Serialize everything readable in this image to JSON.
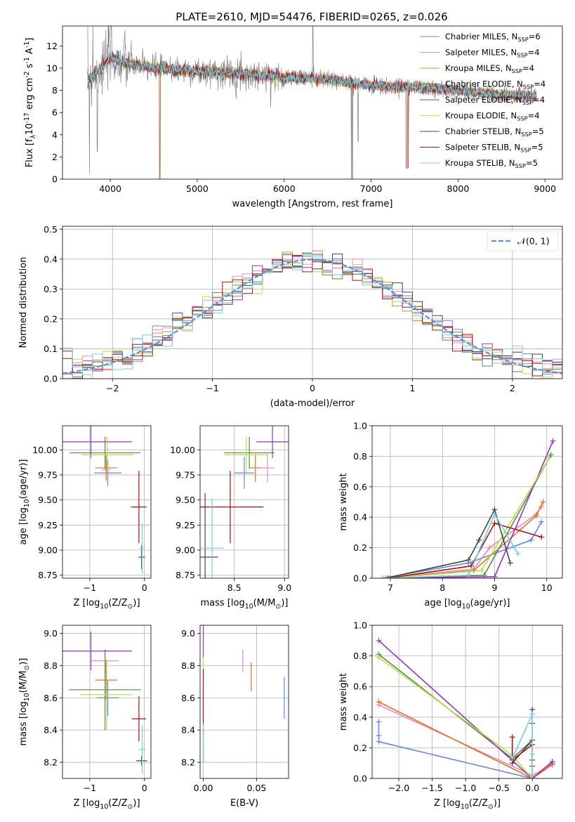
{
  "title": "PLATE=2610, MJD=54476, FIBERID=0265, z=0.026",
  "colors": [
    "#6688dd",
    "#ee88bb",
    "#dd8833",
    "#558855",
    "#9933bb",
    "#dddd44",
    "#444444",
    "#aa1111",
    "#77ccdd"
  ],
  "extra_colors": {
    "gray_data": "#808080",
    "orange": "#e07020",
    "lime": "#bbdd44",
    "normal": "#5b8fd6"
  },
  "chart_data": [
    {
      "id": "spectrum",
      "type": "line",
      "xlabel": "wavelength [Angstrom, rest frame]",
      "ylabel": "Flux [f$_\\lambda$10$^{-17}$ erg cm$^{-2}$ s$^{-1}$ A$^{-1}$]",
      "xlim": [
        3450,
        9200
      ],
      "ylim": [
        0,
        13.8
      ],
      "xticks": [
        4000,
        5000,
        6000,
        7000,
        8000,
        9000
      ],
      "yticks": [
        0,
        2,
        4,
        6,
        8,
        10,
        12
      ],
      "grid": false,
      "legend_position": "top-right",
      "legend": [
        {
          "label": "Chabrier MILES, N",
          "sub": "SSP",
          "tail": "=6"
        },
        {
          "label": "Salpeter MILES, N",
          "sub": "SSP",
          "tail": "=4"
        },
        {
          "label": "Kroupa MILES, N",
          "sub": "SSP",
          "tail": "=4"
        },
        {
          "label": "Chabrier ELODIE, N",
          "sub": "SSP",
          "tail": "=4"
        },
        {
          "label": "Salpeter ELODIE, N",
          "sub": "SSP",
          "tail": "=4"
        },
        {
          "label": "Kroupa ELODIE, N",
          "sub": "SSP",
          "tail": "=4"
        },
        {
          "label": "Chabrier STELIB, N",
          "sub": "SSP",
          "tail": "=5"
        },
        {
          "label": "Salpeter STELIB, N",
          "sub": "SSP",
          "tail": "=5"
        },
        {
          "label": "Kroupa STELIB, N",
          "sub": "SSP",
          "tail": "=5"
        }
      ],
      "continuum": [
        [
          3740,
          9.0
        ],
        [
          3900,
          10.0
        ],
        [
          4000,
          11.0
        ],
        [
          4200,
          10.4
        ],
        [
          4500,
          10.0
        ],
        [
          5000,
          9.7
        ],
        [
          5500,
          9.5
        ],
        [
          6000,
          9.2
        ],
        [
          6500,
          9.0
        ],
        [
          7000,
          8.4
        ],
        [
          7500,
          8.3
        ],
        [
          8000,
          8.0
        ],
        [
          8500,
          7.6
        ],
        [
          8900,
          7.5
        ]
      ],
      "spikes": [
        [
          3760,
          0.5
        ],
        [
          3800,
          13.8
        ],
        [
          3850,
          2.5
        ],
        [
          4010,
          13.8
        ],
        [
          4570,
          0.0
        ],
        [
          6780,
          0.0
        ],
        [
          6850,
          3.4
        ],
        [
          7420,
          1.0
        ],
        [
          6330,
          13.8
        ]
      ]
    },
    {
      "id": "residuals",
      "type": "line",
      "xlabel": "(data-model)/error",
      "ylabel": "Normed distribution",
      "xlim": [
        -2.5,
        2.5
      ],
      "ylim": [
        0,
        0.51
      ],
      "xticks": [
        -2,
        -1,
        0,
        1,
        2
      ],
      "yticks": [
        0.0,
        0.1,
        0.2,
        0.3,
        0.4,
        0.5
      ],
      "grid": true,
      "legend": [
        "$\\mathcal{N}(0,1)$"
      ],
      "legend_position": "top-right",
      "bin_width": 0.1
    },
    {
      "id": "age_vs_Z",
      "type": "scatter",
      "xlabel": "Z [log$_{10}$(Z/Z$_\\odot$)]",
      "ylabel": "age  [log$_{10}$(age/yr)]",
      "xlim": [
        -1.5,
        0.12
      ],
      "ylim": [
        8.72,
        10.24
      ],
      "xticks": [
        -1,
        0
      ],
      "yticks": [
        8.75,
        9.0,
        9.25,
        9.5,
        9.75,
        10.0
      ],
      "grid": true,
      "points": [
        {
          "s": 0,
          "x": -0.67,
          "y": 9.77,
          "xe": 0.25,
          "ye": 0.13
        },
        {
          "s": 1,
          "x": -0.7,
          "y": 9.8,
          "xe": 0.08,
          "ye": 0.1
        },
        {
          "s": 2,
          "x": -0.7,
          "y": 9.82,
          "xe": 0.2,
          "ye": 0.13
        },
        {
          "s": 3,
          "x": -0.72,
          "y": 9.97,
          "xe": 0.65,
          "ye": 0.16
        },
        {
          "s": 4,
          "x": -0.98,
          "y": 10.08,
          "xe": 0.75,
          "ye": 0.16
        },
        {
          "s": 5,
          "x": -0.68,
          "y": 9.95,
          "xe": 0.48,
          "ye": 0.18
        },
        {
          "s": 6,
          "x": -0.05,
          "y": 8.93,
          "xe": 0.06,
          "ye": 0.12
        },
        {
          "s": 7,
          "x": -0.1,
          "y": 9.43,
          "xe": 0.14,
          "ye": 0.36
        },
        {
          "s": 8,
          "x": -0.04,
          "y": 9.02,
          "xe": 0.05,
          "ye": 0.25
        }
      ]
    },
    {
      "id": "age_vs_mass",
      "type": "scatter",
      "xlabel": "mass [log$_{10}$(M/M$_\\odot$)]",
      "ylabel": "",
      "xlim": [
        8.16,
        9.04
      ],
      "ylim": [
        8.72,
        10.24
      ],
      "xticks": [
        8.5,
        9.0
      ],
      "yticks": [
        8.75,
        9.0,
        9.25,
        9.5,
        9.75,
        10.0
      ],
      "grid": true,
      "points": [
        {
          "s": 0,
          "x": 8.6,
          "y": 9.77,
          "xe": 0.1,
          "ye": 0.16
        },
        {
          "s": 1,
          "x": 8.83,
          "y": 9.82,
          "xe": 0.07,
          "ye": 0.14
        },
        {
          "s": 2,
          "x": 8.71,
          "y": 9.82,
          "xe": 0.06,
          "ye": 0.14
        },
        {
          "s": 3,
          "x": 8.65,
          "y": 9.97,
          "xe": 0.25,
          "ye": 0.16
        },
        {
          "s": 4,
          "x": 8.88,
          "y": 10.08,
          "xe": 0.16,
          "ye": 0.16
        },
        {
          "s": 5,
          "x": 8.62,
          "y": 9.95,
          "xe": 0.22,
          "ye": 0.18
        },
        {
          "s": 6,
          "x": 8.21,
          "y": 8.93,
          "xe": 0.13,
          "ye": 0.64
        },
        {
          "s": 7,
          "x": 8.46,
          "y": 9.43,
          "xe": 0.33,
          "ye": 0.36
        },
        {
          "s": 8,
          "x": 8.28,
          "y": 9.02,
          "xe": 0.12,
          "ye": 0.5
        }
      ]
    },
    {
      "id": "weight_vs_age",
      "type": "line",
      "xlabel": "age  [log$_{10}$(age/yr)]",
      "ylabel": "mass weight",
      "xlim": [
        6.65,
        10.3
      ],
      "ylim": [
        0,
        1.0
      ],
      "xticks": [
        7,
        8,
        9,
        10
      ],
      "yticks": [
        0.0,
        0.2,
        0.4,
        0.6,
        0.8,
        1.0
      ],
      "grid": true,
      "series": [
        {
          "s": 0,
          "pts": [
            [
              6.85,
              0.0
            ],
            [
              8.5,
              0.1
            ],
            [
              9.7,
              0.25
            ],
            [
              9.9,
              0.37
            ]
          ]
        },
        {
          "s": 1,
          "pts": [
            [
              6.85,
              0.0
            ],
            [
              8.6,
              0.06
            ],
            [
              8.9,
              0.2
            ],
            [
              9.8,
              0.42
            ],
            [
              9.9,
              0.47
            ]
          ]
        },
        {
          "s": 2,
          "pts": [
            [
              6.9,
              0.0
            ],
            [
              8.6,
              0.05
            ],
            [
              9.8,
              0.41
            ],
            [
              9.93,
              0.5
            ]
          ]
        },
        {
          "s": 3,
          "pts": [
            [
              6.95,
              0.0
            ],
            [
              8.8,
              0.02
            ],
            [
              10.08,
              0.81
            ]
          ]
        },
        {
          "s": 4,
          "pts": [
            [
              7.0,
              0.0
            ],
            [
              9.0,
              0.01
            ],
            [
              10.12,
              0.9
            ]
          ]
        },
        {
          "s": 5,
          "pts": [
            [
              6.9,
              0.0
            ],
            [
              8.75,
              0.05
            ],
            [
              10.05,
              0.79
            ]
          ]
        },
        {
          "s": 6,
          "pts": [
            [
              6.9,
              0.0
            ],
            [
              8.5,
              0.12
            ],
            [
              8.7,
              0.25
            ],
            [
              9.0,
              0.45
            ],
            [
              9.3,
              0.1
            ]
          ]
        },
        {
          "s": 7,
          "pts": [
            [
              6.95,
              0.0
            ],
            [
              8.55,
              0.08
            ],
            [
              9.0,
              0.36
            ],
            [
              9.9,
              0.27
            ]
          ]
        },
        {
          "s": 8,
          "pts": [
            [
              6.9,
              0.0
            ],
            [
              8.5,
              0.02
            ],
            [
              9.0,
              0.42
            ],
            [
              9.45,
              0.16
            ]
          ]
        }
      ]
    },
    {
      "id": "mass_vs_Z",
      "type": "scatter",
      "xlabel": "Z [log$_{10}$(Z/Z$_\\odot$)]",
      "ylabel": "mass [log$_{10}$(M/M$_\\odot$)]",
      "xlim": [
        -1.5,
        0.12
      ],
      "ylim": [
        8.1,
        9.05
      ],
      "xticks": [
        -1,
        0
      ],
      "yticks": [
        8.2,
        8.4,
        8.6,
        8.8,
        9.0
      ],
      "grid": true,
      "points": [
        {
          "s": 0,
          "x": -0.67,
          "y": 8.6,
          "xe": 0.2,
          "ye": 0.11
        },
        {
          "s": 1,
          "x": -0.72,
          "y": 8.83,
          "xe": 0.25,
          "ye": 0.07
        },
        {
          "s": 2,
          "x": -0.7,
          "y": 8.71,
          "xe": 0.2,
          "ye": 0.12
        },
        {
          "s": 3,
          "x": -0.72,
          "y": 8.65,
          "xe": 0.66,
          "ye": 0.25
        },
        {
          "s": 4,
          "x": -0.98,
          "y": 8.89,
          "xe": 0.75,
          "ye": 0.12
        },
        {
          "s": 5,
          "x": -0.69,
          "y": 8.62,
          "xe": 0.48,
          "ye": 0.22
        },
        {
          "s": 6,
          "x": -0.05,
          "y": 8.21,
          "xe": 0.1,
          "ye": 0.03
        },
        {
          "s": 7,
          "x": -0.1,
          "y": 8.47,
          "xe": 0.13,
          "ye": 0.14
        },
        {
          "s": 8,
          "x": -0.04,
          "y": 8.28,
          "xe": 0.06,
          "ye": 0.15
        }
      ]
    },
    {
      "id": "mass_vs_ebv",
      "type": "scatter",
      "xlabel": "E(B-V)",
      "ylabel": "",
      "xlim": [
        -0.003,
        0.08
      ],
      "ylim": [
        8.1,
        9.05
      ],
      "xticks": [
        0.0,
        0.05
      ],
      "yticks": [
        8.2,
        8.4,
        8.6,
        8.8,
        9.0
      ],
      "grid": true,
      "points": [
        {
          "s": 0,
          "x": 0.076,
          "y": 8.6,
          "xe": 0,
          "ye": 0.13
        },
        {
          "s": 1,
          "x": 0.037,
          "y": 8.83,
          "xe": 0,
          "ye": 0.07
        },
        {
          "s": 2,
          "x": 0.045,
          "y": 8.73,
          "xe": 0,
          "ye": 0.09
        },
        {
          "s": 4,
          "x": 0.0,
          "y": 8.95,
          "xe": 0,
          "ye": 0.1
        },
        {
          "s": 5,
          "x": 0.0,
          "y": 8.75,
          "xe": 0,
          "ye": 0.1
        },
        {
          "s": 6,
          "x": 0.0,
          "y": 8.3,
          "xe": 0,
          "ye": 0.1
        },
        {
          "s": 7,
          "x": 0.0,
          "y": 8.58,
          "xe": 0,
          "ye": 0.2
        },
        {
          "s": 8,
          "x": 0.0,
          "y": 8.32,
          "xe": 0,
          "ye": 0.12
        }
      ]
    },
    {
      "id": "weight_vs_Z",
      "type": "line",
      "xlabel": "Z [log$_{10}$(Z/Z$_\\odot$)]",
      "ylabel": "mass weight",
      "xlim": [
        -2.4,
        0.45
      ],
      "ylim": [
        0,
        1.0
      ],
      "xticks": [
        -2.0,
        -1.5,
        -1.0,
        -0.5,
        0.0
      ],
      "yticks": [
        0.0,
        0.2,
        0.4,
        0.6,
        0.8,
        1.0
      ],
      "grid": true,
      "series": [
        {
          "s": 0,
          "pts": [
            [
              -2.3,
              0.37
            ],
            [
              -2.3,
              0.28
            ],
            [
              -2.3,
              0.24
            ],
            [
              0.0,
              0.0
            ],
            [
              0.3,
              0.1
            ]
          ]
        },
        {
          "s": 1,
          "pts": [
            [
              -2.3,
              0.48
            ],
            [
              0.0,
              0.02
            ],
            [
              0.3,
              0.09
            ]
          ]
        },
        {
          "s": 2,
          "pts": [
            [
              -2.3,
              0.5
            ],
            [
              0.0,
              0.0
            ],
            [
              0.3,
              0.09
            ]
          ]
        },
        {
          "s": 3,
          "pts": [
            [
              -2.3,
              0.81
            ],
            [
              -0.3,
              0.13
            ],
            [
              0.0,
              0.25
            ],
            [
              0.0,
              0.01
            ]
          ]
        },
        {
          "s": 4,
          "pts": [
            [
              -2.3,
              0.9
            ],
            [
              0.0,
              0.0
            ],
            [
              0.3,
              0.11
            ]
          ]
        },
        {
          "s": 5,
          "pts": [
            [
              -2.3,
              0.79
            ],
            [
              -0.3,
              0.15
            ],
            [
              0.0,
              0.0
            ]
          ]
        },
        {
          "s": 6,
          "pts": [
            [
              -0.3,
              0.1
            ],
            [
              0.0,
              0.25
            ],
            [
              0.0,
              0.45
            ],
            [
              0.0,
              0.36
            ],
            [
              0.0,
              0.12
            ]
          ]
        },
        {
          "s": 7,
          "pts": [
            [
              -0.3,
              0.27
            ],
            [
              -0.3,
              0.12
            ],
            [
              0.0,
              0.22
            ],
            [
              0.0,
              0.08
            ]
          ]
        },
        {
          "s": 8,
          "pts": [
            [
              -0.3,
              0.13
            ],
            [
              0.0,
              0.42
            ],
            [
              0.0,
              0.16
            ],
            [
              0.0,
              0.02
            ]
          ]
        }
      ]
    }
  ]
}
